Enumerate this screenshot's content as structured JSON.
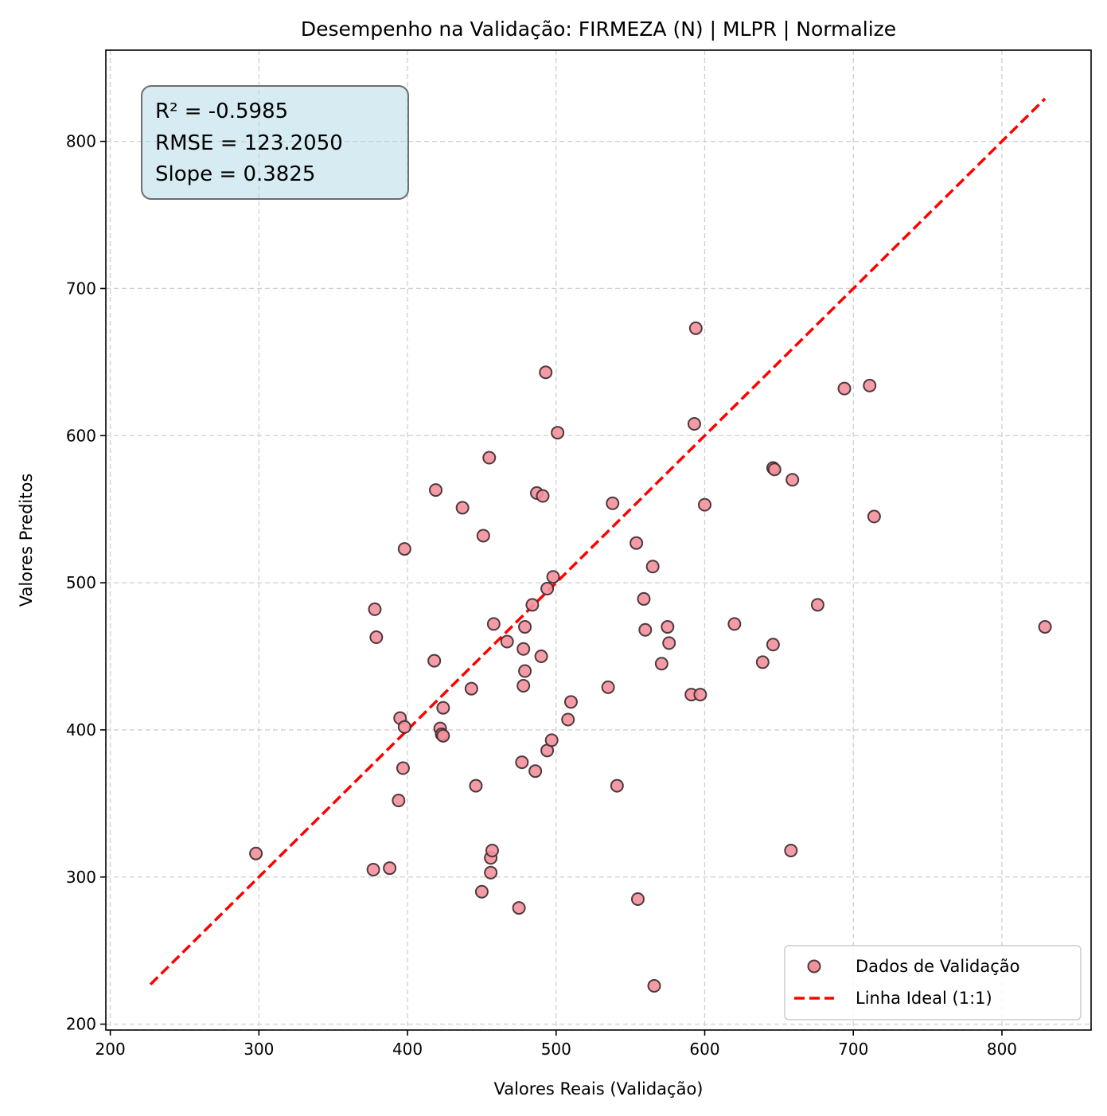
{
  "chart_data": {
    "type": "scatter",
    "title": "Desempenho na Validação: FIRMEZA (N) | MLPR | Normalize",
    "xlabel": "Valores Reais (Validação)",
    "ylabel": "Valores Preditos",
    "xlim": [
      197,
      860
    ],
    "ylim": [
      196,
      862
    ],
    "xticks": [
      200,
      300,
      400,
      500,
      600,
      700,
      800
    ],
    "yticks": [
      200,
      300,
      400,
      500,
      600,
      700,
      800
    ],
    "grid": true,
    "legend_position": "bottom-right",
    "stats": {
      "r2": "R² = -0.5985",
      "rmse": "RMSE = 123.2050",
      "slope": "Slope = 0.3825"
    },
    "series": [
      {
        "name": "Dados de Validação",
        "kind": "scatter",
        "color": "#f4909c",
        "edge_color": "#3a2a2e",
        "points": [
          [
            298,
            316
          ],
          [
            377,
            305
          ],
          [
            378,
            482
          ],
          [
            379,
            463
          ],
          [
            388,
            306
          ],
          [
            394,
            352
          ],
          [
            395,
            408
          ],
          [
            397,
            374
          ],
          [
            398,
            402
          ],
          [
            398,
            523
          ],
          [
            418,
            447
          ],
          [
            419,
            563
          ],
          [
            422,
            401
          ],
          [
            423,
            397
          ],
          [
            424,
            396
          ],
          [
            424,
            415
          ],
          [
            437,
            551
          ],
          [
            443,
            428
          ],
          [
            446,
            362
          ],
          [
            450,
            290
          ],
          [
            451,
            532
          ],
          [
            455,
            585
          ],
          [
            456,
            303
          ],
          [
            456,
            313
          ],
          [
            457,
            318
          ],
          [
            458,
            472
          ],
          [
            467,
            460
          ],
          [
            475,
            279
          ],
          [
            477,
            378
          ],
          [
            478,
            430
          ],
          [
            478,
            455
          ],
          [
            479,
            440
          ],
          [
            479,
            470
          ],
          [
            484,
            485
          ],
          [
            486,
            372
          ],
          [
            487,
            561
          ],
          [
            490,
            450
          ],
          [
            491,
            559
          ],
          [
            493,
            643
          ],
          [
            494,
            386
          ],
          [
            494,
            496
          ],
          [
            497,
            393
          ],
          [
            498,
            504
          ],
          [
            501,
            602
          ],
          [
            508,
            407
          ],
          [
            510,
            419
          ],
          [
            535,
            429
          ],
          [
            538,
            554
          ],
          [
            541,
            362
          ],
          [
            554,
            527
          ],
          [
            555,
            285
          ],
          [
            559,
            489
          ],
          [
            560,
            468
          ],
          [
            565,
            511
          ],
          [
            566,
            226
          ],
          [
            571,
            445
          ],
          [
            575,
            470
          ],
          [
            576,
            459
          ],
          [
            591,
            424
          ],
          [
            593,
            608
          ],
          [
            594,
            673
          ],
          [
            597,
            424
          ],
          [
            600,
            553
          ],
          [
            620,
            472
          ],
          [
            639,
            446
          ],
          [
            646,
            458
          ],
          [
            646,
            578
          ],
          [
            647,
            577
          ],
          [
            658,
            318
          ],
          [
            659,
            570
          ],
          [
            676,
            485
          ],
          [
            694,
            632
          ],
          [
            711,
            634
          ],
          [
            714,
            545
          ],
          [
            829,
            470
          ]
        ]
      },
      {
        "name": "Linha Ideal (1:1)",
        "kind": "line",
        "style": "dashed",
        "color": "#ff0000",
        "x": [
          227,
          829
        ],
        "y": [
          227,
          829
        ]
      }
    ]
  }
}
